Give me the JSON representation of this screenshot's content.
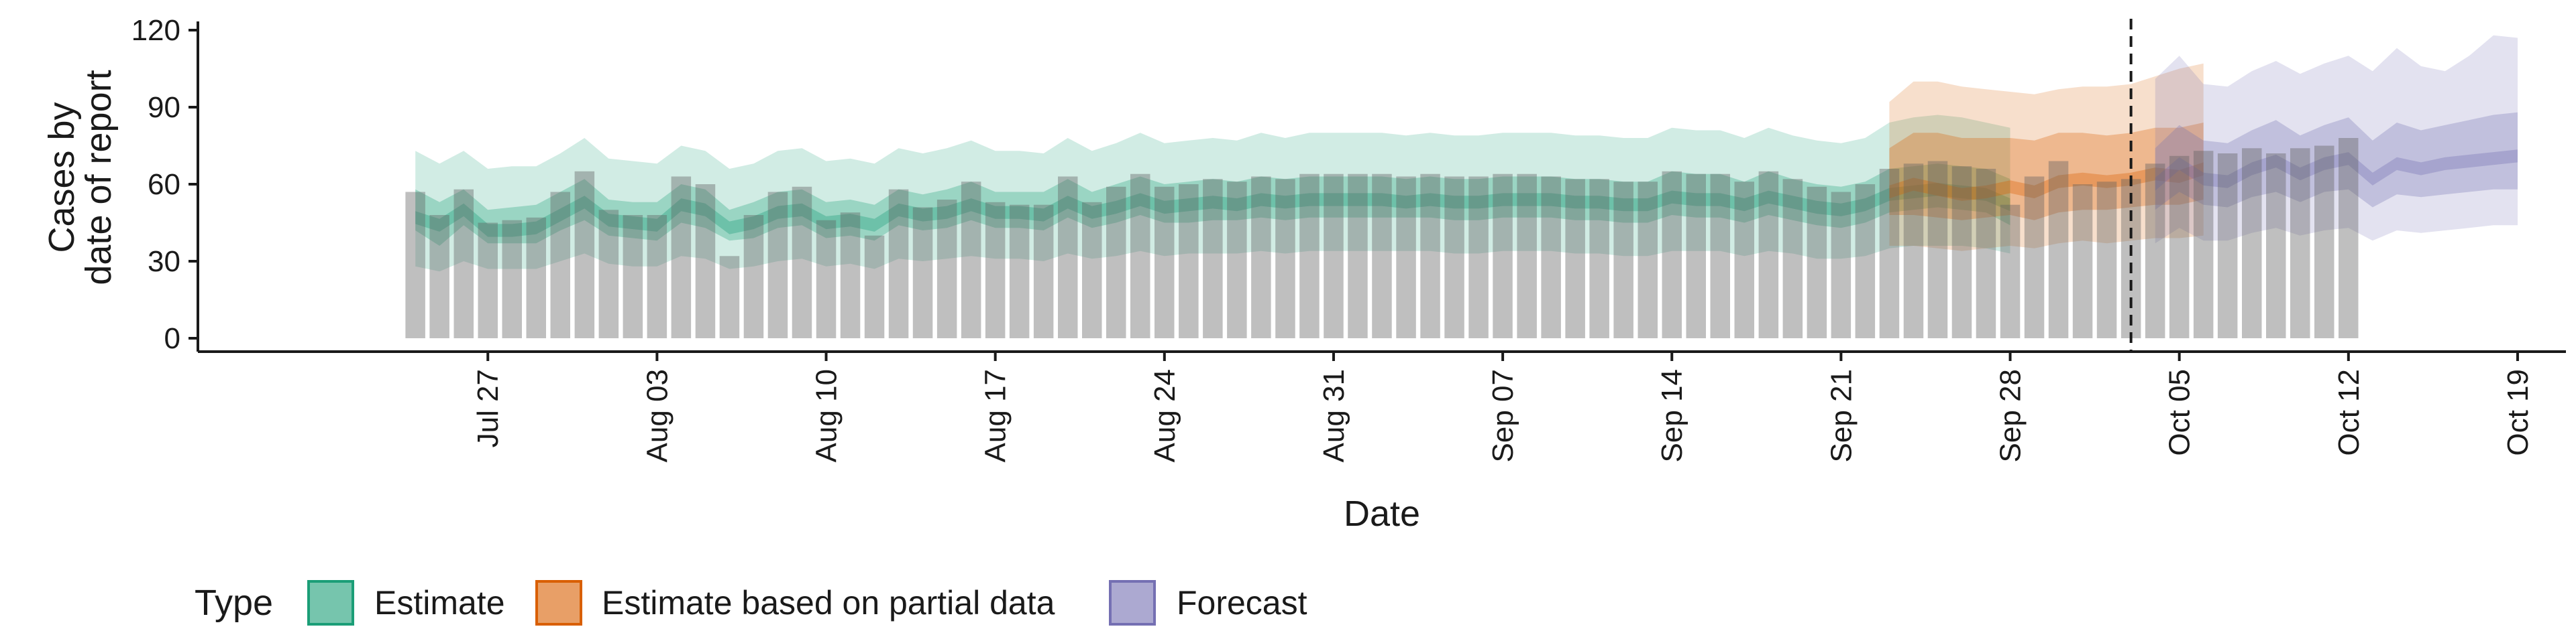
{
  "chart_data": {
    "type": "area",
    "xlabel": "Date",
    "ylabel_lines": [
      "Cases by",
      "date of report"
    ],
    "ylim": [
      0,
      120
    ],
    "yticks": [
      0,
      30,
      60,
      90,
      120
    ],
    "x_ticks": [
      {
        "date": "2020-07-27",
        "label": "Jul 27"
      },
      {
        "date": "2020-08-03",
        "label": "Aug 03"
      },
      {
        "date": "2020-08-10",
        "label": "Aug 10"
      },
      {
        "date": "2020-08-17",
        "label": "Aug 17"
      },
      {
        "date": "2020-08-24",
        "label": "Aug 24"
      },
      {
        "date": "2020-08-31",
        "label": "Aug 31"
      },
      {
        "date": "2020-09-07",
        "label": "Sep 07"
      },
      {
        "date": "2020-09-14",
        "label": "Sep 14"
      },
      {
        "date": "2020-09-21",
        "label": "Sep 21"
      },
      {
        "date": "2020-09-28",
        "label": "Sep 28"
      },
      {
        "date": "2020-10-05",
        "label": "Oct 05"
      },
      {
        "date": "2020-10-12",
        "label": "Oct 12"
      },
      {
        "date": "2020-10-19",
        "label": "Oct 19"
      }
    ],
    "xlim": [
      "2020-07-15",
      "2020-10-21"
    ],
    "forecast_start_line": "2020-10-03",
    "reported_cases": {
      "start_date": "2020-07-24",
      "values": [
        57,
        48,
        58,
        45,
        46,
        47,
        57,
        65,
        50,
        48,
        48,
        63,
        60,
        32,
        48,
        57,
        59,
        46,
        49,
        40,
        58,
        51,
        54,
        61,
        53,
        52,
        52,
        63,
        53,
        59,
        64,
        59,
        60,
        62,
        61,
        63,
        62,
        64,
        64,
        64,
        64,
        63,
        64,
        63,
        63,
        64,
        64,
        63,
        62,
        62,
        61,
        61,
        65,
        64,
        64,
        61,
        65,
        62,
        59,
        57,
        60,
        66,
        68,
        69,
        67,
        66,
        52,
        63,
        69,
        60,
        61,
        62,
        68,
        71,
        73,
        72,
        74,
        72,
        74,
        75,
        78
      ]
    },
    "series": [
      {
        "name": "Estimate",
        "color": "#1b9e77",
        "start_date": "2020-07-24",
        "median": [
          47,
          44,
          50,
          42,
          42,
          43,
          48,
          53,
          46,
          45,
          44,
          52,
          50,
          43,
          45,
          49,
          50,
          45,
          46,
          44,
          50,
          48,
          49,
          52,
          49,
          49,
          48,
          53,
          49,
          51,
          54,
          51,
          52,
          53,
          52,
          54,
          53,
          54,
          54,
          54,
          54,
          53,
          54,
          53,
          53,
          54,
          54,
          54,
          53,
          53,
          52,
          52,
          55,
          54,
          54,
          52,
          55,
          53,
          51,
          50,
          52,
          56,
          57,
          58,
          57,
          56,
          52
        ],
        "ci50": [
          [
            42,
            58
          ],
          [
            36,
            53
          ],
          [
            44,
            58
          ],
          [
            37,
            50
          ],
          [
            37,
            51
          ],
          [
            37,
            52
          ],
          [
            42,
            57
          ],
          [
            46,
            62
          ],
          [
            40,
            54
          ],
          [
            39,
            53
          ],
          [
            38,
            53
          ],
          [
            45,
            60
          ],
          [
            43,
            58
          ],
          [
            38,
            50
          ],
          [
            39,
            53
          ],
          [
            43,
            57
          ],
          [
            44,
            58
          ],
          [
            39,
            53
          ],
          [
            40,
            54
          ],
          [
            38,
            52
          ],
          [
            44,
            58
          ],
          [
            42,
            56
          ],
          [
            43,
            58
          ],
          [
            46,
            61
          ],
          [
            43,
            57
          ],
          [
            43,
            57
          ],
          [
            42,
            57
          ],
          [
            47,
            62
          ],
          [
            43,
            57
          ],
          [
            45,
            60
          ],
          [
            48,
            63
          ],
          [
            45,
            60
          ],
          [
            45,
            61
          ],
          [
            46,
            62
          ],
          [
            46,
            61
          ],
          [
            47,
            63
          ],
          [
            46,
            62
          ],
          [
            47,
            63
          ],
          [
            47,
            63
          ],
          [
            47,
            63
          ],
          [
            47,
            63
          ],
          [
            47,
            62
          ],
          [
            47,
            63
          ],
          [
            46,
            62
          ],
          [
            46,
            62
          ],
          [
            47,
            63
          ],
          [
            47,
            63
          ],
          [
            47,
            63
          ],
          [
            46,
            62
          ],
          [
            46,
            62
          ],
          [
            45,
            61
          ],
          [
            45,
            61
          ],
          [
            48,
            65
          ],
          [
            47,
            64
          ],
          [
            47,
            64
          ],
          [
            45,
            61
          ],
          [
            48,
            65
          ],
          [
            46,
            62
          ],
          [
            44,
            60
          ],
          [
            43,
            59
          ],
          [
            45,
            61
          ],
          [
            49,
            66
          ],
          [
            50,
            67
          ],
          [
            51,
            68
          ],
          [
            50,
            67
          ],
          [
            49,
            66
          ],
          [
            44,
            62
          ]
        ],
        "ci90": [
          [
            28,
            73
          ],
          [
            26,
            68
          ],
          [
            30,
            73
          ],
          [
            27,
            66
          ],
          [
            27,
            67
          ],
          [
            27,
            67
          ],
          [
            30,
            72
          ],
          [
            33,
            78
          ],
          [
            29,
            70
          ],
          [
            28,
            69
          ],
          [
            28,
            68
          ],
          [
            32,
            75
          ],
          [
            31,
            73
          ],
          [
            27,
            66
          ],
          [
            28,
            68
          ],
          [
            30,
            73
          ],
          [
            31,
            74
          ],
          [
            28,
            69
          ],
          [
            29,
            70
          ],
          [
            27,
            68
          ],
          [
            31,
            74
          ],
          [
            30,
            72
          ],
          [
            31,
            74
          ],
          [
            32,
            77
          ],
          [
            31,
            73
          ],
          [
            31,
            73
          ],
          [
            30,
            72
          ],
          [
            33,
            78
          ],
          [
            31,
            73
          ],
          [
            32,
            76
          ],
          [
            34,
            80
          ],
          [
            32,
            76
          ],
          [
            33,
            77
          ],
          [
            33,
            78
          ],
          [
            33,
            77
          ],
          [
            34,
            80
          ],
          [
            33,
            78
          ],
          [
            34,
            80
          ],
          [
            34,
            80
          ],
          [
            34,
            80
          ],
          [
            34,
            80
          ],
          [
            34,
            79
          ],
          [
            34,
            80
          ],
          [
            33,
            79
          ],
          [
            33,
            79
          ],
          [
            34,
            80
          ],
          [
            34,
            80
          ],
          [
            34,
            80
          ],
          [
            33,
            79
          ],
          [
            33,
            79
          ],
          [
            32,
            78
          ],
          [
            32,
            78
          ],
          [
            34,
            82
          ],
          [
            34,
            81
          ],
          [
            34,
            81
          ],
          [
            32,
            78
          ],
          [
            34,
            82
          ],
          [
            33,
            79
          ],
          [
            31,
            77
          ],
          [
            31,
            76
          ],
          [
            32,
            78
          ],
          [
            35,
            84
          ],
          [
            36,
            86
          ],
          [
            36,
            87
          ],
          [
            36,
            86
          ],
          [
            35,
            84
          ],
          [
            33,
            82
          ]
        ]
      },
      {
        "name": "Estimate based on partial data",
        "color": "#d95f02",
        "start_date": "2020-09-23",
        "median": [
          57,
          60,
          58,
          56,
          57,
          59,
          57,
          61,
          62,
          61,
          62,
          64,
          63,
          66
        ],
        "ci50": [
          [
            48,
            74
          ],
          [
            48,
            80
          ],
          [
            47,
            80
          ],
          [
            46,
            78
          ],
          [
            47,
            78
          ],
          [
            48,
            78
          ],
          [
            46,
            77
          ],
          [
            49,
            80
          ],
          [
            50,
            80
          ],
          [
            50,
            79
          ],
          [
            51,
            80
          ],
          [
            52,
            82
          ],
          [
            52,
            82
          ],
          [
            54,
            84
          ]
        ],
        "ci90": [
          [
            36,
            92
          ],
          [
            36,
            100
          ],
          [
            35,
            100
          ],
          [
            34,
            98
          ],
          [
            35,
            97
          ],
          [
            36,
            96
          ],
          [
            35,
            95
          ],
          [
            37,
            97
          ],
          [
            38,
            98
          ],
          [
            37,
            98
          ],
          [
            38,
            99
          ],
          [
            39,
            102
          ],
          [
            39,
            105
          ],
          [
            40,
            107
          ]
        ]
      },
      {
        "name": "Forecast",
        "color": "#7570b3",
        "start_date": "2020-10-04",
        "median": [
          60,
          68,
          62,
          61,
          66,
          69,
          64,
          68,
          70,
          62,
          68,
          66,
          68,
          69,
          70,
          71
        ],
        "ci50": [
          [
            50,
            74
          ],
          [
            57,
            83
          ],
          [
            52,
            77
          ],
          [
            51,
            76
          ],
          [
            55,
            81
          ],
          [
            57,
            85
          ],
          [
            53,
            79
          ],
          [
            57,
            83
          ],
          [
            58,
            86
          ],
          [
            51,
            77
          ],
          [
            56,
            84
          ],
          [
            55,
            81
          ],
          [
            56,
            83
          ],
          [
            57,
            85
          ],
          [
            58,
            87
          ],
          [
            58,
            88
          ]
        ],
        "ci90": [
          [
            37,
            101
          ],
          [
            43,
            110
          ],
          [
            38,
            99
          ],
          [
            38,
            98
          ],
          [
            41,
            104
          ],
          [
            43,
            108
          ],
          [
            40,
            103
          ],
          [
            42,
            107
          ],
          [
            43,
            110
          ],
          [
            38,
            104
          ],
          [
            42,
            113
          ],
          [
            41,
            106
          ],
          [
            42,
            104
          ],
          [
            43,
            110
          ],
          [
            44,
            118
          ],
          [
            44,
            117
          ]
        ]
      }
    ],
    "legend": {
      "title": "Type",
      "position": "bottom",
      "items": [
        "Estimate",
        "Estimate based on partial data",
        "Forecast"
      ]
    }
  }
}
